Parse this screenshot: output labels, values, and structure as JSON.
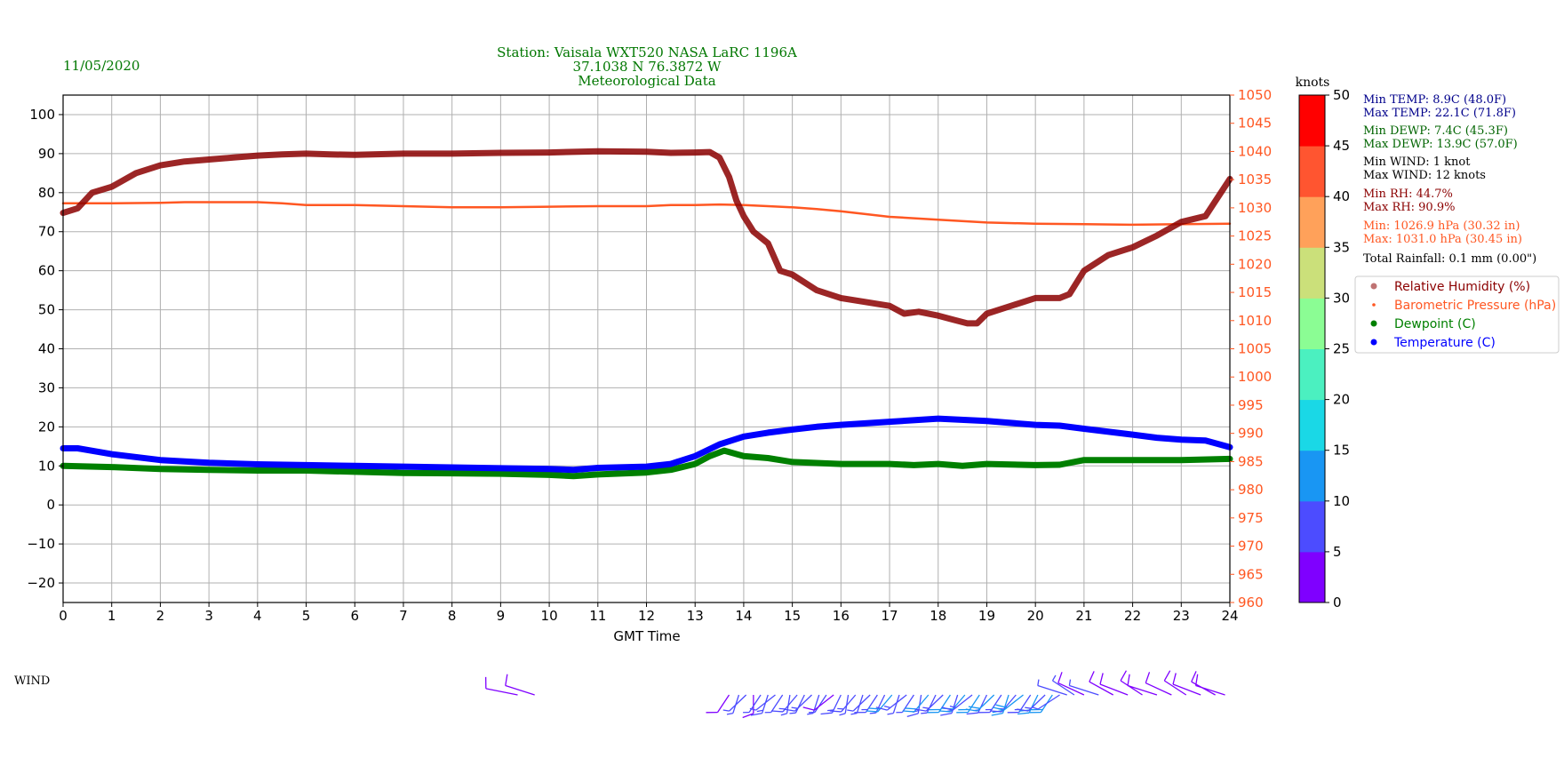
{
  "date": "11/05/2020",
  "title_lines": [
    "Station:  Vaisala WXT520  NASA LaRC 1196A",
    "37.1038 N 76.3872 W",
    "Meteorological Data"
  ],
  "colors": {
    "title_green": "#007700",
    "temperature": "#0000ff",
    "dewpoint": "#008000",
    "rh": "#8b0000",
    "pressure": "#ff5722",
    "black": "#000000",
    "grid": "#b0b0b0"
  },
  "stats": [
    {
      "text": "Min TEMP: 8.9C (48.0F)",
      "color": "#00008b"
    },
    {
      "text": "Max TEMP: 22.1C (71.8F)",
      "color": "#00008b"
    },
    {
      "text": "Min DEWP: 7.4C (45.3F)",
      "color": "#006400"
    },
    {
      "text": "Max DEWP: 13.9C (57.0F)",
      "color": "#006400"
    },
    {
      "text": "Min WIND: 1 knot",
      "color": "#000000"
    },
    {
      "text": "Max WIND: 12 knots",
      "color": "#000000"
    },
    {
      "text": "Min RH: 44.7%",
      "color": "#8b0000"
    },
    {
      "text": "Max RH: 90.9%",
      "color": "#8b0000"
    },
    {
      "text": "Min: 1026.9 hPa (30.32 in)",
      "color": "#ff5722"
    },
    {
      "text": "Max: 1031.0 hPa (30.45 in)",
      "color": "#ff5722"
    },
    {
      "text": "Total Rainfall: 0.1 mm (0.00\")",
      "color": "#000000"
    }
  ],
  "legend": [
    {
      "label": "Relative Humidity (%)",
      "color": "#8b0000",
      "marker": "circle-faded"
    },
    {
      "label": "Barometric Pressure (hPa)",
      "color": "#ff5722",
      "marker": "dot-small"
    },
    {
      "label": "Dewpoint (C)",
      "color": "#008000",
      "marker": "dot"
    },
    {
      "label": "Temperature (C)",
      "color": "#0000ff",
      "marker": "dot"
    }
  ],
  "wind_label": "WIND",
  "colorbar": {
    "label": "knots",
    "ticks": [
      "0",
      "5",
      "10",
      "15",
      "20",
      "25",
      "30",
      "35",
      "40",
      "45",
      "50"
    ],
    "bands": [
      "#7f00ff",
      "#4c4cff",
      "#1996f3",
      "#1ad8e6",
      "#4bf0c0",
      "#8bfd94",
      "#cbe07a",
      "#ffa15a",
      "#ff5530",
      "#ff0000"
    ]
  },
  "chart_data": {
    "type": "line",
    "xlabel": "GMT Time",
    "x_ticks": [
      "0",
      "1",
      "2",
      "3",
      "4",
      "5",
      "6",
      "7",
      "8",
      "9",
      "10",
      "11",
      "12",
      "13",
      "14",
      "15",
      "16",
      "17",
      "18",
      "19",
      "20",
      "21",
      "22",
      "23",
      "24"
    ],
    "xlim": [
      0,
      24
    ],
    "ylim_left": [
      -25,
      105
    ],
    "yticks_left": [
      "−20",
      "−10",
      "0",
      "10",
      "20",
      "30",
      "40",
      "50",
      "60",
      "70",
      "80",
      "90",
      "100"
    ],
    "ylim_right": [
      960,
      1050
    ],
    "yticks_right": [
      "960",
      "965",
      "970",
      "975",
      "980",
      "985",
      "990",
      "995",
      "1000",
      "1005",
      "1010",
      "1015",
      "1020",
      "1025",
      "1030",
      "1035",
      "1040",
      "1045",
      "1050"
    ],
    "grid": true,
    "legend_position": "right",
    "series": [
      {
        "name": "Relative Humidity (%)",
        "axis": "left",
        "x": [
          0,
          0.3,
          0.6,
          1,
          1.5,
          2,
          2.5,
          3,
          3.5,
          4,
          4.5,
          5,
          5.5,
          6,
          7,
          8,
          9,
          10,
          11,
          12,
          12.5,
          13,
          13.3,
          13.5,
          13.7,
          13.85,
          14,
          14.2,
          14.5,
          14.75,
          15,
          15.5,
          16,
          16.5,
          17,
          17.3,
          17.6,
          18,
          18.3,
          18.6,
          18.8,
          19,
          19.5,
          20,
          20.5,
          20.7,
          21,
          21.5,
          22,
          22.5,
          23,
          23.5,
          24
        ],
        "values": [
          74.8,
          76,
          80,
          81.5,
          85,
          87,
          88,
          88.5,
          89,
          89.5,
          89.8,
          90,
          89.8,
          89.7,
          90,
          90,
          90.2,
          90.3,
          90.6,
          90.5,
          90.2,
          90.3,
          90.4,
          89,
          84,
          78,
          74,
          70,
          67,
          60,
          59,
          55,
          53,
          52,
          51,
          49,
          49.5,
          48.5,
          47.5,
          46.5,
          46.5,
          49,
          51,
          53,
          53,
          54,
          60,
          64,
          66,
          69,
          72.5,
          74,
          83.5
        ]
      },
      {
        "name": "Barometric Pressure (hPa)",
        "axis": "right",
        "x": [
          0,
          1,
          2,
          2.5,
          3,
          3.5,
          4,
          4.5,
          5,
          6,
          7,
          8,
          9,
          10,
          11,
          12,
          12.5,
          13,
          13.5,
          14,
          14.5,
          15,
          15.5,
          16,
          16.5,
          17,
          18,
          19,
          20,
          21,
          22,
          23,
          24
        ],
        "values": [
          1030.8,
          1030.8,
          1030.9,
          1031,
          1031,
          1031,
          1031,
          1030.8,
          1030.5,
          1030.5,
          1030.3,
          1030.1,
          1030.1,
          1030.2,
          1030.3,
          1030.3,
          1030.5,
          1030.5,
          1030.6,
          1030.5,
          1030.3,
          1030.1,
          1029.8,
          1029.4,
          1028.9,
          1028.4,
          1027.9,
          1027.4,
          1027.2,
          1027.1,
          1027,
          1027.1,
          1027.2
        ]
      },
      {
        "name": "Dewpoint (C)",
        "axis": "left",
        "x": [
          0,
          1,
          2,
          3,
          4,
          5,
          6,
          7,
          8,
          9,
          10,
          10.5,
          11,
          12,
          12.5,
          13,
          13.3,
          13.6,
          14,
          14.5,
          15,
          16,
          17,
          17.5,
          18,
          18.5,
          19,
          20,
          20.5,
          21,
          22,
          23,
          24
        ],
        "values": [
          10,
          9.7,
          9.2,
          9,
          8.8,
          8.8,
          8.5,
          8.2,
          8.1,
          8,
          7.7,
          7.4,
          7.8,
          8.3,
          9,
          10.5,
          12.5,
          13.9,
          12.5,
          12,
          11,
          10.5,
          10.5,
          10.2,
          10.5,
          10,
          10.5,
          10.2,
          10.3,
          11.5,
          11.5,
          11.5,
          11.8
        ]
      },
      {
        "name": "Temperature (C)",
        "axis": "left",
        "x": [
          0,
          0.3,
          1,
          2,
          3,
          4,
          5,
          6,
          7,
          8,
          9,
          10,
          10.5,
          11,
          12,
          12.5,
          13,
          13.5,
          14,
          14.5,
          15,
          15.5,
          16,
          17,
          18,
          19,
          20,
          20.5,
          21,
          22,
          22.5,
          23,
          23.5,
          24
        ],
        "values": [
          14.5,
          14.5,
          13,
          11.5,
          10.8,
          10.4,
          10.2,
          10,
          9.8,
          9.6,
          9.4,
          9.2,
          9,
          9.5,
          9.8,
          10.5,
          12.5,
          15.5,
          17.5,
          18.5,
          19.3,
          20,
          20.5,
          21.3,
          22.1,
          21.5,
          20.5,
          20.3,
          19.5,
          18,
          17.2,
          16.7,
          16.5,
          14.8
        ]
      }
    ]
  },
  "wind_barbs": [
    {
      "t": 9.35,
      "s": 4,
      "d": 290
    },
    {
      "t": 9.7,
      "s": 3,
      "d": 300
    },
    {
      "t": 13.7,
      "s": 4,
      "d": 200
    },
    {
      "t": 13.9,
      "s": 5,
      "d": 190
    },
    {
      "t": 14.05,
      "s": 7,
      "d": 210
    },
    {
      "t": 14.2,
      "s": 4,
      "d": 180
    },
    {
      "t": 14.35,
      "s": 6,
      "d": 200
    },
    {
      "t": 14.5,
      "s": 8,
      "d": 190
    },
    {
      "t": 14.65,
      "s": 5,
      "d": 215
    },
    {
      "t": 14.8,
      "s": 7,
      "d": 200
    },
    {
      "t": 14.95,
      "s": 6,
      "d": 185
    },
    {
      "t": 15.1,
      "s": 9,
      "d": 205
    },
    {
      "t": 15.25,
      "s": 6,
      "d": 195
    },
    {
      "t": 15.4,
      "s": 8,
      "d": 210
    },
    {
      "t": 15.55,
      "s": 5,
      "d": 190
    },
    {
      "t": 15.7,
      "s": 7,
      "d": 200
    },
    {
      "t": 15.85,
      "s": 4,
      "d": 215
    },
    {
      "t": 16.0,
      "s": 8,
      "d": 195
    },
    {
      "t": 16.15,
      "s": 6,
      "d": 185
    },
    {
      "t": 16.3,
      "s": 9,
      "d": 205
    },
    {
      "t": 16.45,
      "s": 7,
      "d": 190
    },
    {
      "t": 16.6,
      "s": 5,
      "d": 210
    },
    {
      "t": 16.75,
      "s": 8,
      "d": 200
    },
    {
      "t": 16.9,
      "s": 6,
      "d": 195
    },
    {
      "t": 17.05,
      "s": 10,
      "d": 205
    },
    {
      "t": 17.2,
      "s": 7,
      "d": 190
    },
    {
      "t": 17.35,
      "s": 9,
      "d": 215
    },
    {
      "t": 17.5,
      "s": 6,
      "d": 200
    },
    {
      "t": 17.65,
      "s": 8,
      "d": 185
    },
    {
      "t": 17.8,
      "s": 11,
      "d": 205
    },
    {
      "t": 17.95,
      "s": 7,
      "d": 195
    },
    {
      "t": 18.1,
      "s": 9,
      "d": 210
    },
    {
      "t": 18.25,
      "s": 12,
      "d": 200
    },
    {
      "t": 18.4,
      "s": 8,
      "d": 190
    },
    {
      "t": 18.55,
      "s": 10,
      "d": 205
    },
    {
      "t": 18.7,
      "s": 9,
      "d": 215
    },
    {
      "t": 18.85,
      "s": 11,
      "d": 200
    },
    {
      "t": 19.0,
      "s": 8,
      "d": 195
    },
    {
      "t": 19.15,
      "s": 10,
      "d": 210
    },
    {
      "t": 19.3,
      "s": 9,
      "d": 200
    },
    {
      "t": 19.45,
      "s": 11,
      "d": 190
    },
    {
      "t": 19.6,
      "s": 8,
      "d": 205
    },
    {
      "t": 19.75,
      "s": 10,
      "d": 215
    },
    {
      "t": 19.9,
      "s": 9,
      "d": 200
    },
    {
      "t": 20.05,
      "s": 11,
      "d": 195
    },
    {
      "t": 20.2,
      "s": 8,
      "d": 210
    },
    {
      "t": 20.35,
      "s": 10,
      "d": 200
    },
    {
      "t": 20.5,
      "s": 7,
      "d": 220
    },
    {
      "t": 20.65,
      "s": 6,
      "d": 300
    },
    {
      "t": 20.8,
      "s": 5,
      "d": 320
    },
    {
      "t": 21.0,
      "s": 4,
      "d": 310
    },
    {
      "t": 21.3,
      "s": 5,
      "d": 300
    },
    {
      "t": 21.6,
      "s": 4,
      "d": 315
    },
    {
      "t": 21.9,
      "s": 3,
      "d": 305
    },
    {
      "t": 22.2,
      "s": 4,
      "d": 320
    },
    {
      "t": 22.5,
      "s": 3,
      "d": 300
    },
    {
      "t": 22.8,
      "s": 4,
      "d": 310
    },
    {
      "t": 23.1,
      "s": 3,
      "d": 320
    },
    {
      "t": 23.4,
      "s": 4,
      "d": 305
    },
    {
      "t": 23.7,
      "s": 3,
      "d": 315
    },
    {
      "t": 23.9,
      "s": 4,
      "d": 300
    }
  ]
}
